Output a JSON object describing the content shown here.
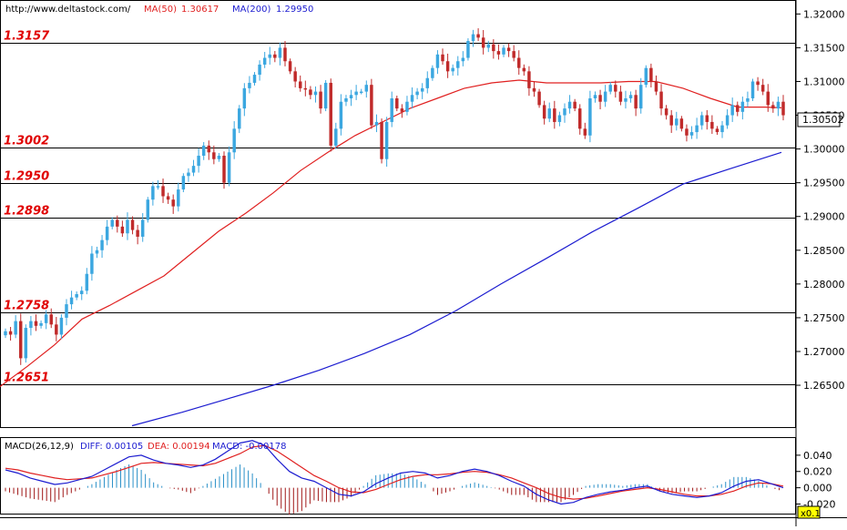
{
  "header": {
    "url": "http://www.deltastock.com/",
    "ma50_label": "MA(50)",
    "ma50_value": "1.30617",
    "ma200_label": "MA(200)",
    "ma200_value": "1.29950"
  },
  "macd_header": {
    "title": "MACD(26,12,9)",
    "diff": "DIFF: 0.00105",
    "dea": "DEA: 0.00194",
    "macd": "MACD: -0.00178"
  },
  "colors": {
    "up": "#3ba7e0",
    "down": "#c02a2a",
    "ma50": "#e02020",
    "ma200": "#1c1cd0",
    "level_text": "#e00000",
    "macd_diff": "#1c1cd0",
    "macd_dea": "#e02020",
    "hist_pos": "#2a90c8",
    "hist_neg": "#a01818"
  },
  "scale_badge": "x0.1",
  "chart_data": [
    {
      "type": "candlestick",
      "title": "",
      "ylim": [
        1.2588,
        1.3218
      ],
      "y_ticks": [
        "1.32000",
        "1.31500",
        "1.31000",
        "1.30500",
        "1.30000",
        "1.29500",
        "1.29000",
        "1.28500",
        "1.28000",
        "1.27500",
        "1.27000",
        "1.26500"
      ],
      "current_price": "1.30502",
      "levels": [
        {
          "value": 1.3157,
          "label": "1.3157"
        },
        {
          "value": 1.3002,
          "label": "1.3002"
        },
        {
          "value": 1.295,
          "label": "1.2950"
        },
        {
          "value": 1.2898,
          "label": "1.2898"
        },
        {
          "value": 1.2758,
          "label": "1.2758"
        },
        {
          "value": 1.2651,
          "label": "1.2651"
        }
      ],
      "closes": [
        1.273,
        1.2725,
        1.2745,
        1.269,
        1.2735,
        1.2745,
        1.2738,
        1.2742,
        1.2755,
        1.274,
        1.2725,
        1.275,
        1.277,
        1.278,
        1.2785,
        1.279,
        1.2815,
        1.2845,
        1.285,
        1.2865,
        1.2885,
        1.2895,
        1.2885,
        1.2875,
        1.2895,
        1.288,
        1.287,
        1.2895,
        1.2925,
        1.2945,
        1.2945,
        1.293,
        1.2925,
        1.2915,
        1.294,
        1.296,
        1.2965,
        1.2975,
        1.299,
        1.3005,
        1.2995,
        1.2985,
        1.299,
        1.295,
        1.2995,
        1.303,
        1.306,
        1.309,
        1.3098,
        1.311,
        1.3125,
        1.3135,
        1.314,
        1.3135,
        1.315,
        1.313,
        1.3115,
        1.31,
        1.309,
        1.3088,
        1.308,
        1.3085,
        1.306,
        1.3098,
        1.3005,
        1.303,
        1.307,
        1.3075,
        1.308,
        1.3085,
        1.3085,
        1.3095,
        1.3035,
        1.304,
        1.2985,
        1.304,
        1.3075,
        1.306,
        1.3055,
        1.307,
        1.308,
        1.3085,
        1.309,
        1.3105,
        1.312,
        1.314,
        1.313,
        1.3115,
        1.312,
        1.313,
        1.3135,
        1.316,
        1.317,
        1.3165,
        1.315,
        1.3155,
        1.3145,
        1.314,
        1.315,
        1.3145,
        1.3135,
        1.312,
        1.3115,
        1.309,
        1.3085,
        1.3065,
        1.3045,
        1.306,
        1.304,
        1.305,
        1.306,
        1.307,
        1.306,
        1.303,
        1.302,
        1.3075,
        1.308,
        1.307,
        1.3085,
        1.3095,
        1.3085,
        1.307,
        1.3075,
        1.308,
        1.306,
        1.3095,
        1.312,
        1.31,
        1.3085,
        1.306,
        1.305,
        1.3035,
        1.3045,
        1.303,
        1.302,
        1.3025,
        1.3035,
        1.305,
        1.304,
        1.303,
        1.3025,
        1.3035,
        1.305,
        1.3065,
        1.3055,
        1.307,
        1.3075,
        1.31,
        1.3095,
        1.3085,
        1.3065,
        1.306,
        1.307,
        1.305
      ]
    },
    {
      "type": "line",
      "series": [
        {
          "name": "MA(50)",
          "values": [
            [
              0,
              1.2648
            ],
            [
              30,
              1.2678
            ],
            [
              60,
              1.271
            ],
            [
              90,
              1.2748
            ],
            [
              120,
              1.2768
            ],
            [
              150,
              1.279
            ],
            [
              180,
              1.2812
            ],
            [
              210,
              1.2845
            ],
            [
              240,
              1.2878
            ],
            [
              270,
              1.2905
            ],
            [
              300,
              1.2935
            ],
            [
              330,
              1.2968
            ],
            [
              360,
              1.2995
            ],
            [
              390,
              1.302
            ],
            [
              420,
              1.304
            ],
            [
              450,
              1.306
            ],
            [
              480,
              1.3075
            ],
            [
              510,
              1.309
            ],
            [
              540,
              1.3098
            ],
            [
              570,
              1.3102
            ],
            [
              600,
              1.3098
            ],
            [
              630,
              1.3098
            ],
            [
              660,
              1.3098
            ],
            [
              690,
              1.31
            ],
            [
              720,
              1.31
            ],
            [
              750,
              1.309
            ],
            [
              780,
              1.3075
            ],
            [
              810,
              1.3062
            ],
            [
              840,
              1.3062
            ],
            [
              858,
              1.3061
            ]
          ]
        },
        {
          "name": "MA(200)",
          "values": [
            [
              145,
              1.259
            ],
            [
              200,
              1.261
            ],
            [
              250,
              1.263
            ],
            [
              300,
              1.265
            ],
            [
              350,
              1.2672
            ],
            [
              400,
              1.2697
            ],
            [
              450,
              1.2725
            ],
            [
              500,
              1.276
            ],
            [
              550,
              1.28
            ],
            [
              600,
              1.2838
            ],
            [
              650,
              1.2877
            ],
            [
              700,
              1.2912
            ],
            [
              750,
              1.2948
            ],
            [
              800,
              1.297
            ],
            [
              858,
              1.2995
            ]
          ]
        }
      ]
    },
    {
      "type": "macd",
      "ylim": [
        -0.034,
        0.06
      ],
      "y_ticks": [
        "0.040",
        "0.020",
        "0.000",
        "-0.020"
      ],
      "diff_values": [
        0.022,
        0.018,
        0.012,
        0.008,
        0.004,
        0.006,
        0.01,
        0.014,
        0.022,
        0.03,
        0.038,
        0.04,
        0.034,
        0.03,
        0.028,
        0.025,
        0.028,
        0.035,
        0.045,
        0.055,
        0.058,
        0.052,
        0.035,
        0.02,
        0.012,
        0.008,
        0.0,
        -0.008,
        -0.01,
        -0.005,
        0.005,
        0.012,
        0.018,
        0.02,
        0.018,
        0.012,
        0.015,
        0.02,
        0.023,
        0.02,
        0.015,
        0.008,
        0.002,
        -0.008,
        -0.015,
        -0.02,
        -0.018,
        -0.012,
        -0.008,
        -0.005,
        -0.003,
        0.0,
        0.002,
        -0.004,
        -0.008,
        -0.01,
        -0.012,
        -0.01,
        -0.006,
        0.002,
        0.008,
        0.01,
        0.005,
        0.0
      ],
      "dea_values": [
        0.024,
        0.022,
        0.018,
        0.015,
        0.012,
        0.01,
        0.011,
        0.012,
        0.016,
        0.02,
        0.025,
        0.03,
        0.031,
        0.03,
        0.029,
        0.028,
        0.027,
        0.03,
        0.036,
        0.042,
        0.05,
        0.052,
        0.045,
        0.035,
        0.025,
        0.015,
        0.008,
        0.0,
        -0.005,
        -0.006,
        -0.002,
        0.004,
        0.01,
        0.014,
        0.016,
        0.016,
        0.017,
        0.019,
        0.02,
        0.019,
        0.016,
        0.012,
        0.006,
        0.0,
        -0.007,
        -0.012,
        -0.014,
        -0.013,
        -0.01,
        -0.007,
        -0.004,
        -0.002,
        0.0,
        -0.002,
        -0.005,
        -0.008,
        -0.01,
        -0.01,
        -0.008,
        -0.004,
        0.002,
        0.006,
        0.005,
        0.002
      ]
    }
  ]
}
